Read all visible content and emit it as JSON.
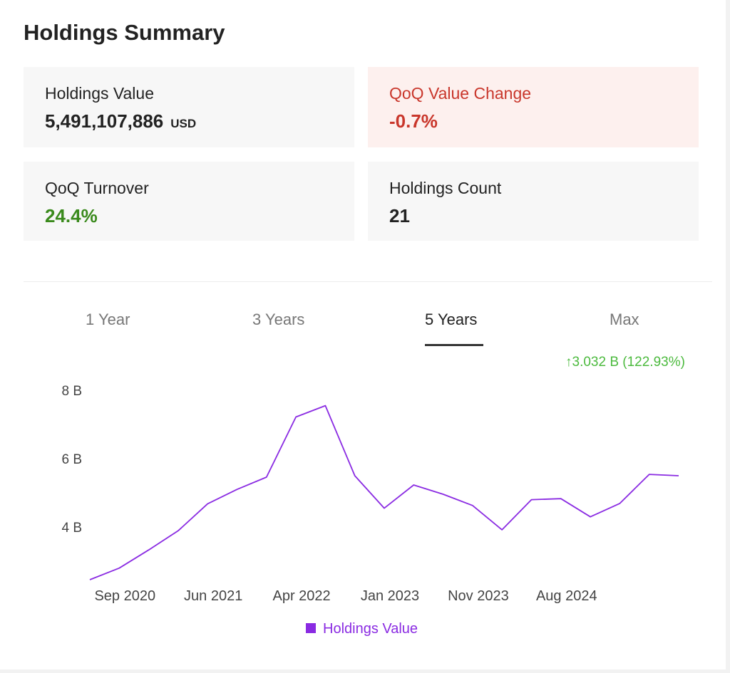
{
  "title": "Holdings Summary",
  "cards": {
    "holdings_value": {
      "label": "Holdings Value",
      "value": "5,491,107,886",
      "unit": "USD"
    },
    "qoq_value_change": {
      "label": "QoQ Value Change",
      "value": "-0.7%"
    },
    "qoq_turnover": {
      "label": "QoQ Turnover",
      "value": "24.4%"
    },
    "holdings_count": {
      "label": "Holdings Count",
      "value": "21"
    }
  },
  "tabs": [
    {
      "label": "1 Year"
    },
    {
      "label": "3 Years"
    },
    {
      "label": "5 Years",
      "active": true
    },
    {
      "label": "Max"
    }
  ],
  "change_indicator": {
    "arrow": "↑",
    "text": "3.032 B (122.93%)"
  },
  "colors": {
    "line": "#8a2be2",
    "negative": "#c9362b",
    "positive": "#3a8a1c",
    "change": "#4cba3e"
  },
  "chart_data": {
    "type": "line",
    "series": [
      {
        "name": "Holdings Value",
        "unit": "B USD",
        "values": [
          2.46,
          2.8,
          3.33,
          3.89,
          4.68,
          5.1,
          5.46,
          7.22,
          7.55,
          5.5,
          4.55,
          5.23,
          4.96,
          4.63,
          3.92,
          4.8,
          4.83,
          4.3,
          4.69,
          5.54,
          5.5
        ]
      }
    ],
    "x_tick_labels": [
      "Sep 2020",
      "Jun 2021",
      "Apr 2022",
      "Jan 2023",
      "Nov 2023",
      "Aug 2024"
    ],
    "y_ticks": [
      {
        "value": 4,
        "label": "4 B"
      },
      {
        "value": 6,
        "label": "6 B"
      },
      {
        "value": 8,
        "label": "8 B"
      }
    ],
    "ylim": [
      2.46,
      8.0
    ],
    "legend": "Holdings Value"
  }
}
